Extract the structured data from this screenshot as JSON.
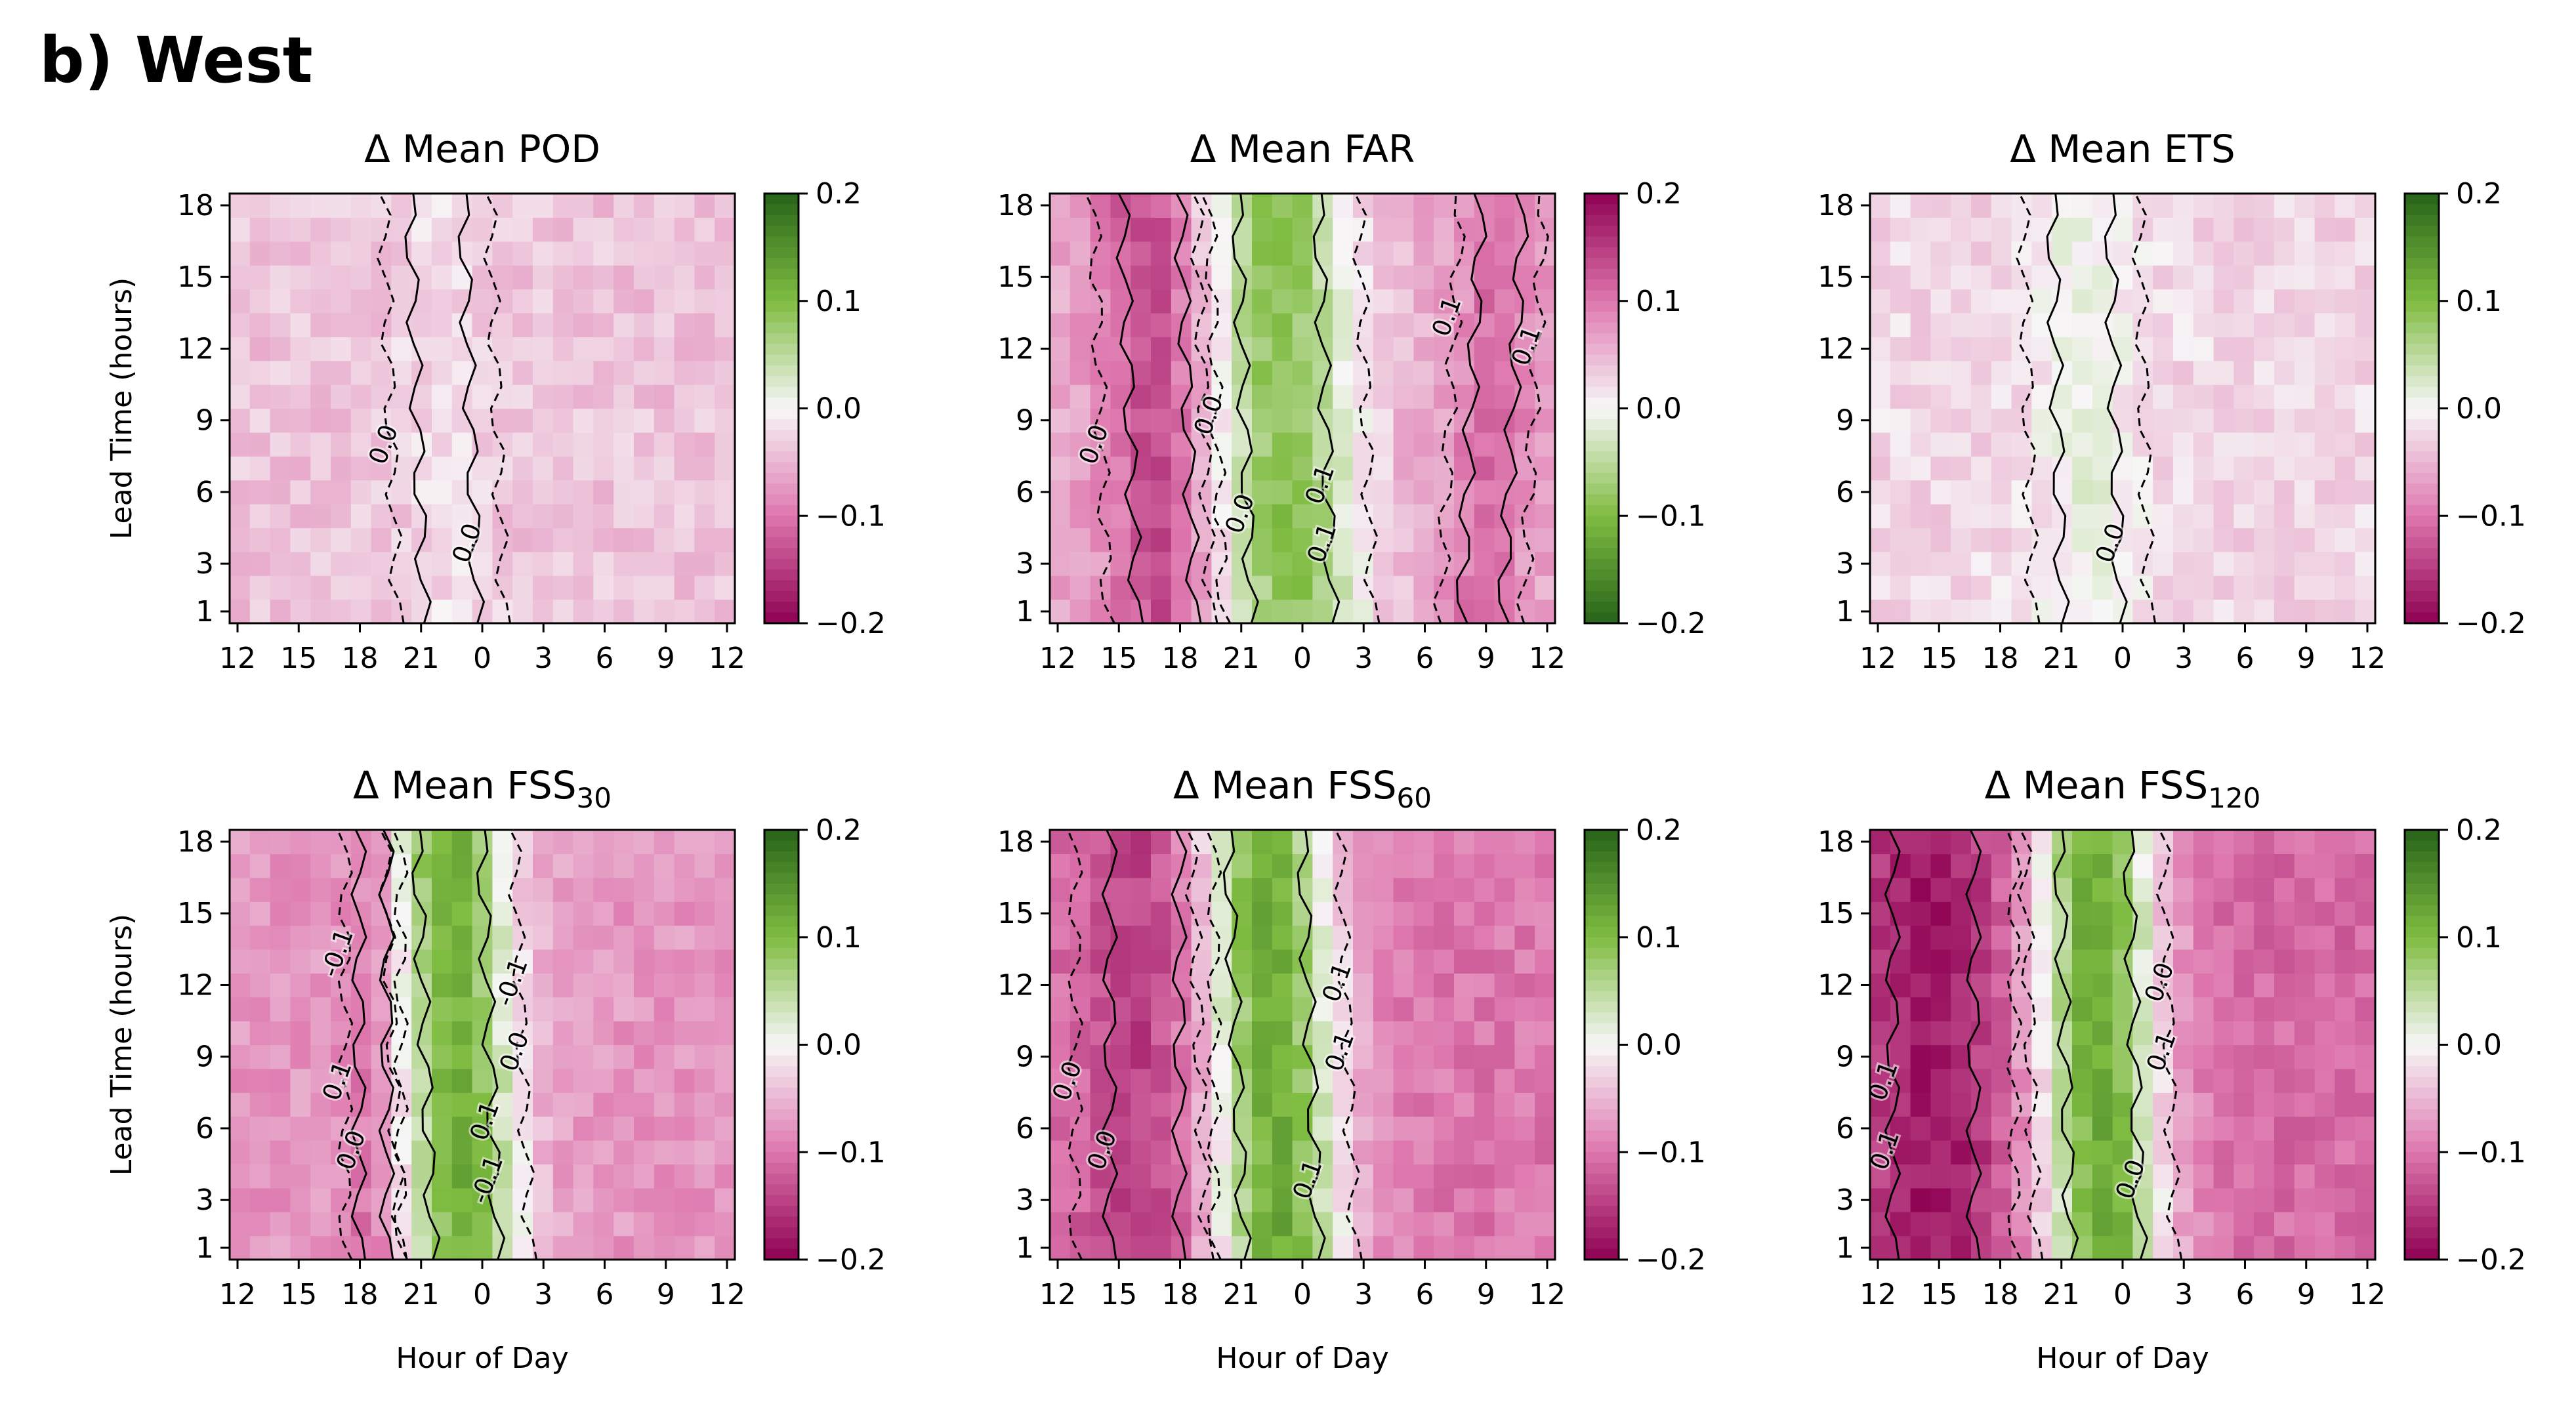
{
  "figure_label": "b) West",
  "colorbar_ticks": [
    "0.2",
    "0.1",
    "0.0",
    "−0.1",
    "−0.2"
  ],
  "x_tick_labels": [
    "12",
    "15",
    "18",
    "21",
    "0",
    "3",
    "6",
    "9",
    "12"
  ],
  "y_tick_labels": [
    "1",
    "3",
    "6",
    "9",
    "12",
    "15",
    "18"
  ],
  "colors": {
    "pink_strong": "#8e0152",
    "pink_mid": "#de77ae",
    "neutral": "#f7f7f7",
    "green_mid": "#7fbc41",
    "green_strong": "#276419"
  },
  "chart_data": [
    {
      "type": "heatmap",
      "title_text": "Δ Mean POD",
      "title_sub": "",
      "xlabel": "",
      "ylabel": "Lead Time (hours)",
      "x_hours": [
        12,
        15,
        18,
        21,
        0,
        3,
        6,
        9,
        12
      ],
      "y_lead_hours": [
        1,
        3,
        6,
        9,
        12,
        15,
        18
      ],
      "zlim": [
        -0.2,
        0.2
      ],
      "colormap": "pink-to-green (positive = green)",
      "contour_labels": [
        "0.0",
        "0.0"
      ],
      "pattern": {
        "base": -0.04,
        "bands": [
          {
            "center_start": 22.5,
            "center_end": 21.8,
            "half_width": 2.3,
            "peak": 0.02
          }
        ]
      }
    },
    {
      "type": "heatmap",
      "title_text": "Δ Mean FAR",
      "title_sub": "",
      "xlabel": "",
      "ylabel": "",
      "x_hours": [
        12,
        15,
        18,
        21,
        0,
        3,
        6,
        9,
        12
      ],
      "y_lead_hours": [
        1,
        3,
        6,
        9,
        12,
        15,
        18
      ],
      "zlim": [
        -0.2,
        0.2
      ],
      "colormap": "green-to-pink (positive = pink)",
      "contour_labels": [
        "0.1",
        "0.0",
        "0.1",
        "0.0",
        "0.0",
        "0.1",
        "0.1"
      ],
      "pattern": {
        "base": 0.06,
        "bands": [
          {
            "center_start": 23.5,
            "center_end": 22.8,
            "half_width": 3.5,
            "peak": -0.15
          },
          {
            "center_start": 17.5,
            "center_end": 16.8,
            "half_width": 2.5,
            "peak": 0.08
          },
          {
            "center_start": 32.5,
            "center_end": 33.5,
            "half_width": 1.8,
            "peak": 0.05
          }
        ]
      }
    },
    {
      "type": "heatmap",
      "title_text": "Δ Mean ETS",
      "title_sub": "",
      "xlabel": "",
      "ylabel": "",
      "x_hours": [
        12,
        15,
        18,
        21,
        0,
        3,
        6,
        9,
        12
      ],
      "y_lead_hours": [
        1,
        3,
        6,
        9,
        12,
        15,
        18
      ],
      "zlim": [
        -0.2,
        0.2
      ],
      "colormap": "pink-to-green (positive = green)",
      "contour_labels": [
        "0.0"
      ],
      "pattern": {
        "base": -0.025,
        "bands": [
          {
            "center_start": 22.5,
            "center_end": 22.0,
            "half_width": 2.5,
            "peak": 0.035
          }
        ]
      }
    },
    {
      "type": "heatmap",
      "title_text": "Δ Mean FSS",
      "title_sub": "30",
      "xlabel": "Hour of Day",
      "ylabel": "Lead Time (hours)",
      "x_hours": [
        12,
        15,
        18,
        21,
        0,
        3,
        6,
        9,
        12
      ],
      "y_lead_hours": [
        1,
        3,
        6,
        9,
        12,
        15,
        18
      ],
      "zlim": [
        -0.2,
        0.2
      ],
      "colormap": "pink-to-green (positive = green)",
      "contour_labels": [
        "-0.1",
        "0.1",
        "-0.1",
        "0.0",
        "0.0",
        "-0.1",
        "0.1"
      ],
      "pattern": {
        "base": -0.075,
        "bands": [
          {
            "center_start": 23.2,
            "center_end": 22.4,
            "half_width": 2.8,
            "peak": 0.19
          },
          {
            "center_start": 18.8,
            "center_end": 18.8,
            "half_width": 1.2,
            "peak": -0.04
          }
        ]
      }
    },
    {
      "type": "heatmap",
      "title_text": "Δ Mean FSS",
      "title_sub": "60",
      "xlabel": "Hour of Day",
      "ylabel": "",
      "x_hours": [
        12,
        15,
        18,
        21,
        0,
        3,
        6,
        9,
        12
      ],
      "y_lead_hours": [
        1,
        3,
        6,
        9,
        12,
        15,
        18
      ],
      "zlim": [
        -0.2,
        0.2
      ],
      "colormap": "pink-to-green (positive = green)",
      "contour_labels": [
        "0.1",
        "0.0",
        "0.1",
        "0.0",
        "0.1"
      ],
      "pattern": {
        "base": -0.1,
        "bands": [
          {
            "center_start": 23.0,
            "center_end": 22.2,
            "half_width": 3.2,
            "peak": 0.22
          },
          {
            "center_start": 16.5,
            "center_end": 16.5,
            "half_width": 3.0,
            "peak": -0.05
          }
        ]
      }
    },
    {
      "type": "heatmap",
      "title_text": "Δ Mean FSS",
      "title_sub": "120",
      "xlabel": "Hour of Day",
      "ylabel": "",
      "x_hours": [
        12,
        15,
        18,
        21,
        0,
        3,
        6,
        9,
        12
      ],
      "y_lead_hours": [
        1,
        3,
        6,
        9,
        12,
        15,
        18
      ],
      "zlim": [
        -0.2,
        0.2
      ],
      "colormap": "pink-to-green (positive = green)",
      "contour_labels": [
        "0.0",
        "0.1",
        "0.0",
        "0.1",
        "0.1"
      ],
      "pattern": {
        "base": -0.11,
        "bands": [
          {
            "center_start": 23.2,
            "center_end": 22.6,
            "half_width": 3.0,
            "peak": 0.23
          },
          {
            "center_start": 15.0,
            "center_end": 15.0,
            "half_width": 3.5,
            "peak": -0.07
          }
        ]
      }
    }
  ]
}
